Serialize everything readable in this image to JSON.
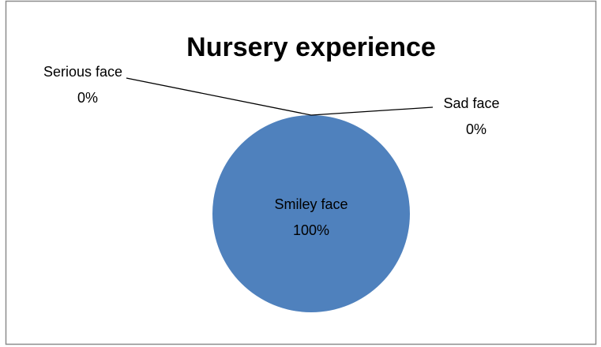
{
  "chart_data": {
    "type": "pie",
    "title": "Nursery experience",
    "categories": [
      "Smiley face",
      "Serious face",
      "Sad face"
    ],
    "values": [
      100,
      0,
      0
    ],
    "value_labels": [
      "100%",
      "0%",
      "0%"
    ],
    "color": "#4f81bd"
  }
}
